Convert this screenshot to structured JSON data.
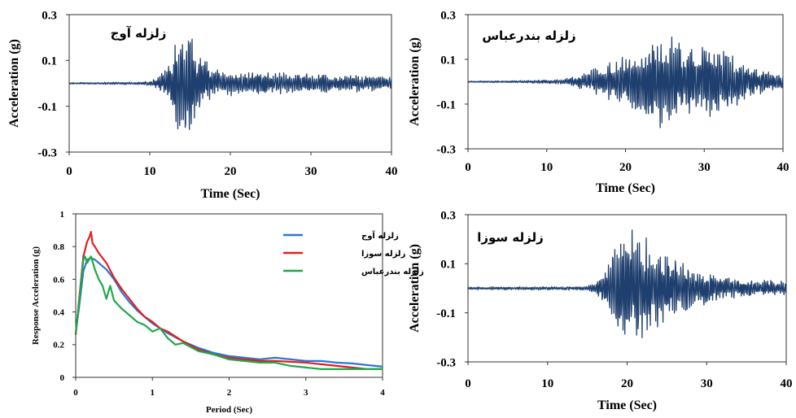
{
  "chart_data": [
    {
      "type": "line",
      "title": "زلزله آوج",
      "xlabel": "Time (Sec)",
      "ylabel": "Acceleration (g)",
      "xlim": [
        0,
        40
      ],
      "ylim": [
        -0.3,
        0.3
      ],
      "xticks": [
        0,
        10,
        20,
        30,
        40
      ],
      "yticks": [
        0.3,
        0.1,
        -0.1,
        -0.3
      ],
      "xtick_labels": [
        "0",
        "10",
        "20",
        "30",
        "40"
      ],
      "ytick_labels": [
        "0.3",
        "0.1",
        "-0.1",
        "-0.3"
      ],
      "color": "#1f3f6e",
      "envelope": [
        [
          0,
          0.004
        ],
        [
          9,
          0.006
        ],
        [
          10,
          0.012
        ],
        [
          11,
          0.03
        ],
        [
          12,
          0.07
        ],
        [
          13,
          0.17
        ],
        [
          14,
          0.25
        ],
        [
          15,
          0.26
        ],
        [
          16,
          0.16
        ],
        [
          17,
          0.1
        ],
        [
          18,
          0.07
        ],
        [
          20,
          0.06
        ],
        [
          25,
          0.05
        ],
        [
          30,
          0.045
        ],
        [
          35,
          0.04
        ],
        [
          40,
          0.03
        ]
      ]
    },
    {
      "type": "line",
      "title": "زلزله بندرعباس",
      "xlabel": "Time (Sec)",
      "ylabel": "Acceleration (g)",
      "xlim": [
        0,
        40
      ],
      "ylim": [
        -0.3,
        0.3
      ],
      "xticks": [
        0,
        10,
        20,
        30,
        40
      ],
      "yticks": [
        0.3,
        0.1,
        -0.1,
        -0.3
      ],
      "xtick_labels": [
        "0",
        "10",
        "20",
        "30",
        "40"
      ],
      "ytick_labels": [
        "0.3",
        "0.1",
        "-0.1",
        "-0.3"
      ],
      "color": "#1f3f6e",
      "envelope": [
        [
          0,
          0.003
        ],
        [
          8,
          0.006
        ],
        [
          12,
          0.012
        ],
        [
          14,
          0.03
        ],
        [
          16,
          0.06
        ],
        [
          18,
          0.09
        ],
        [
          20,
          0.12
        ],
        [
          22,
          0.15
        ],
        [
          24,
          0.22
        ],
        [
          26,
          0.2
        ],
        [
          28,
          0.17
        ],
        [
          31,
          0.16
        ],
        [
          33,
          0.13
        ],
        [
          36,
          0.07
        ],
        [
          38,
          0.05
        ],
        [
          40,
          0.04
        ]
      ]
    },
    {
      "type": "line",
      "title": "",
      "xlabel": "Period (Sec)",
      "ylabel": "Response Acceleration (g)",
      "xlim": [
        0,
        4
      ],
      "ylim": [
        0,
        1
      ],
      "xticks": [
        0,
        1,
        2,
        3,
        4
      ],
      "yticks": [
        1,
        0.8,
        0.6,
        0.4,
        0.2,
        0
      ],
      "xtick_labels": [
        "0",
        "1",
        "2",
        "3",
        "4"
      ],
      "ytick_labels": [
        "1",
        "0.8",
        "0.6",
        "0.4",
        "0.2",
        "0"
      ],
      "legend": "top-right",
      "series": [
        {
          "name": "زلزله آوج",
          "color": "#2e75d8",
          "x": [
            0,
            0.05,
            0.1,
            0.15,
            0.2,
            0.25,
            0.3,
            0.35,
            0.4,
            0.5,
            0.6,
            0.7,
            0.8,
            0.9,
            1.0,
            1.2,
            1.4,
            1.6,
            1.8,
            2.0,
            2.2,
            2.4,
            2.6,
            2.8,
            3.0,
            3.2,
            3.4,
            3.6,
            3.8,
            4.0
          ],
          "y": [
            0.27,
            0.45,
            0.65,
            0.72,
            0.73,
            0.72,
            0.7,
            0.68,
            0.66,
            0.6,
            0.52,
            0.46,
            0.41,
            0.37,
            0.33,
            0.27,
            0.22,
            0.18,
            0.15,
            0.13,
            0.12,
            0.11,
            0.12,
            0.11,
            0.1,
            0.1,
            0.09,
            0.085,
            0.075,
            0.065
          ]
        },
        {
          "name": "زلزله سوزا",
          "color": "#e02020",
          "x": [
            0,
            0.05,
            0.1,
            0.15,
            0.18,
            0.2,
            0.22,
            0.25,
            0.3,
            0.35,
            0.4,
            0.5,
            0.6,
            0.7,
            0.8,
            0.9,
            1.0,
            1.1,
            1.2,
            1.4,
            1.6,
            1.8,
            2.0,
            2.2,
            2.4,
            2.6,
            2.8,
            3.0,
            3.2,
            3.4,
            3.6,
            3.8,
            4.0
          ],
          "y": [
            0.26,
            0.5,
            0.74,
            0.83,
            0.86,
            0.89,
            0.82,
            0.8,
            0.76,
            0.73,
            0.7,
            0.61,
            0.54,
            0.48,
            0.42,
            0.37,
            0.34,
            0.3,
            0.28,
            0.22,
            0.17,
            0.14,
            0.12,
            0.11,
            0.1,
            0.1,
            0.095,
            0.09,
            0.08,
            0.07,
            0.06,
            0.05,
            0.05
          ]
        },
        {
          "name": "زلزله بندرعباس",
          "color": "#1fa84a",
          "x": [
            0,
            0.05,
            0.1,
            0.12,
            0.15,
            0.2,
            0.25,
            0.3,
            0.35,
            0.4,
            0.45,
            0.5,
            0.6,
            0.7,
            0.8,
            0.9,
            1.0,
            1.1,
            1.2,
            1.3,
            1.4,
            1.6,
            1.8,
            2.0,
            2.2,
            2.4,
            2.6,
            2.8,
            3.0,
            3.2,
            3.4,
            3.6,
            3.8,
            4.0
          ],
          "y": [
            0.27,
            0.48,
            0.72,
            0.74,
            0.7,
            0.74,
            0.66,
            0.6,
            0.56,
            0.48,
            0.56,
            0.47,
            0.42,
            0.38,
            0.34,
            0.32,
            0.28,
            0.3,
            0.24,
            0.2,
            0.21,
            0.16,
            0.14,
            0.11,
            0.1,
            0.09,
            0.09,
            0.07,
            0.06,
            0.05,
            0.05,
            0.05,
            0.05,
            0.05
          ]
        }
      ]
    },
    {
      "type": "line",
      "title": "زلزله سوزا",
      "xlabel": "Time (Sec)",
      "ylabel": "Acceleration (g)",
      "xlim": [
        0,
        40
      ],
      "ylim": [
        -0.3,
        0.3
      ],
      "xticks": [
        0,
        10,
        20,
        30,
        40
      ],
      "yticks": [
        0.3,
        0.1,
        -0.1,
        -0.3
      ],
      "xtick_labels": [
        "0",
        "10",
        "20",
        "30",
        "40"
      ],
      "ytick_labels": [
        "0.3",
        "0.1",
        "-0.1",
        "-0.3"
      ],
      "color": "#1f3f6e",
      "envelope": [
        [
          0,
          0.006
        ],
        [
          14,
          0.008
        ],
        [
          15,
          0.012
        ],
        [
          16,
          0.025
        ],
        [
          17,
          0.06
        ],
        [
          18,
          0.14
        ],
        [
          19,
          0.2
        ],
        [
          20,
          0.24
        ],
        [
          21,
          0.25
        ],
        [
          22,
          0.24
        ],
        [
          23,
          0.2
        ],
        [
          24,
          0.16
        ],
        [
          25,
          0.14
        ],
        [
          26,
          0.12
        ],
        [
          28,
          0.09
        ],
        [
          30,
          0.07
        ],
        [
          33,
          0.045
        ],
        [
          36,
          0.035
        ],
        [
          40,
          0.03
        ]
      ]
    }
  ]
}
